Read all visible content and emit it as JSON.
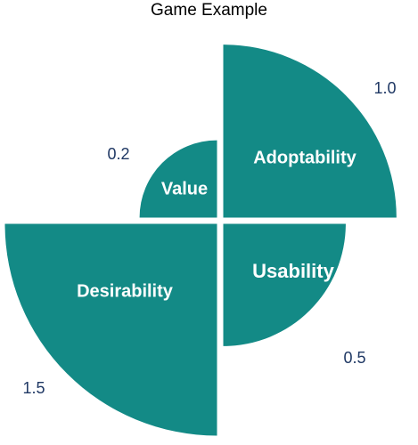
{
  "chart_data": {
    "type": "polar-area",
    "title": "Game Example",
    "series": [
      {
        "name": "Adoptability",
        "value": 1.0,
        "label_text": "1.0"
      },
      {
        "name": "Usability",
        "value": 0.5,
        "label_text": "0.5"
      },
      {
        "name": "Desirability",
        "value": 1.5,
        "label_text": "1.5"
      },
      {
        "name": "Value",
        "value": 0.2,
        "label_text": "0.2"
      }
    ],
    "colors": {
      "slice": "#138a86",
      "value_text": "#1f3864"
    }
  }
}
